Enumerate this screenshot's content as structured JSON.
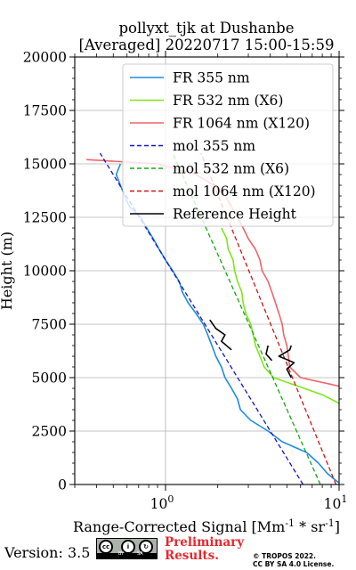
{
  "chart_data": {
    "type": "line",
    "title": "pollyxt_tjk at Dushanbe",
    "subtitle": "[Averaged] 20220717 15:00-15:59",
    "xlabel": "Range-Corrected Signal [Mm^-1 * sr^-1]",
    "ylabel": "Height (m)",
    "x_scale": "log",
    "xlim": [
      0.3,
      10
    ],
    "ylim": [
      0,
      20000
    ],
    "x_ticks": [
      1,
      10
    ],
    "x_tick_labels": [
      "10^0",
      "10^1"
    ],
    "y_ticks": [
      0,
      2500,
      5000,
      7500,
      10000,
      12500,
      15000,
      17500,
      20000
    ],
    "y_tick_labels": [
      "0",
      "2500",
      "5000",
      "7500",
      "10000",
      "12500",
      "15000",
      "17500",
      "20000"
    ],
    "grid": true,
    "legend_position": "top-right",
    "series": [
      {
        "name": "FR 355 nm",
        "color": "#1f8be0",
        "style": "solid",
        "y": [
          100,
          500,
          1000,
          1500,
          2000,
          2500,
          3000,
          3500,
          4000,
          4500,
          5000,
          5500,
          6000,
          6500,
          7000,
          7500,
          8000,
          8500,
          9000,
          9500,
          10000,
          10500,
          11000,
          11500,
          12000,
          12500,
          13000,
          13500,
          14000,
          14500,
          15000
        ],
        "x": [
          9.9,
          8.6,
          7.6,
          6.5,
          4.7,
          3.9,
          3.1,
          2.7,
          2.6,
          2.4,
          2.2,
          2.1,
          1.95,
          1.85,
          1.75,
          1.65,
          1.5,
          1.35,
          1.25,
          1.2,
          1.1,
          1.0,
          0.92,
          0.85,
          0.78,
          0.72,
          0.62,
          0.58,
          0.55,
          0.52,
          0.55
        ]
      },
      {
        "name": "FR 532 nm (X6)",
        "color": "#7fe61a",
        "style": "solid",
        "y": [
          3800,
          4200,
          4600,
          5000,
          5500,
          6000,
          6500,
          7000,
          7500,
          8000,
          8500,
          9000,
          9500,
          10000,
          10500,
          11000,
          11500,
          12000
        ],
        "x": [
          10.0,
          8.0,
          5.8,
          4.2,
          3.7,
          3.5,
          3.3,
          3.2,
          3.1,
          2.9,
          2.8,
          2.75,
          2.6,
          2.5,
          2.45,
          2.3,
          2.25,
          2.1
        ]
      },
      {
        "name": "FR 1064 nm (X120)",
        "color": "#f0646a",
        "style": "solid",
        "y": [
          4600,
          5000,
          5500,
          6000,
          6500,
          7000,
          7500,
          8000,
          8500,
          9000,
          9500,
          10000,
          10500,
          11000,
          11500,
          12000,
          12500,
          13000,
          13500,
          14000,
          14500,
          15000,
          15200
        ],
        "x": [
          10.0,
          6.0,
          5.2,
          5.1,
          5.0,
          4.8,
          4.7,
          4.5,
          4.3,
          4.1,
          3.9,
          3.6,
          3.5,
          3.3,
          3.0,
          2.8,
          2.6,
          2.4,
          2.2,
          1.9,
          1.5,
          0.9,
          0.35
        ]
      },
      {
        "name": "mol 355 nm",
        "color": "#1515c8",
        "style": "dashed",
        "y": [
          0,
          15500
        ],
        "x": [
          6.2,
          0.42
        ]
      },
      {
        "name": "mol 532 nm (X6)",
        "color": "#13a813",
        "style": "dashed",
        "y": [
          0,
          15500
        ],
        "x": [
          7.8,
          1.1
        ]
      },
      {
        "name": "mol 1064 nm (X120)",
        "color": "#d01515",
        "style": "dashed",
        "y": [
          0,
          15500
        ],
        "x": [
          9.6,
          1.6
        ]
      },
      {
        "name": "Reference Height",
        "color": "#000000",
        "style": "solid",
        "segments": [
          {
            "y": [
              6300,
              6700,
              7000,
              7300,
              7700
            ],
            "x": [
              2.4,
              2.1,
              2.2,
              1.95,
              1.8
            ]
          },
          {
            "y": [
              5000,
              5400,
              5700,
              6000,
              6300,
              6500
            ],
            "x": [
              5.3,
              5.0,
              5.5,
              4.5,
              5.2,
              5.3
            ]
          },
          {
            "y": [
              5800,
              6100,
              6500
            ],
            "x": [
              4.1,
              3.8,
              3.9
            ]
          }
        ]
      }
    ]
  },
  "footer": {
    "version_text": "Version: 3.5",
    "cc_label": "cc",
    "cc_by_label": "BY",
    "cc_sa_label": "SA",
    "preliminary_line1": "Preliminary",
    "preliminary_line2": "Results.",
    "copyright_line1": "© TROPOS 2022.",
    "copyright_line2": "CC BY SA 4.0 License."
  }
}
